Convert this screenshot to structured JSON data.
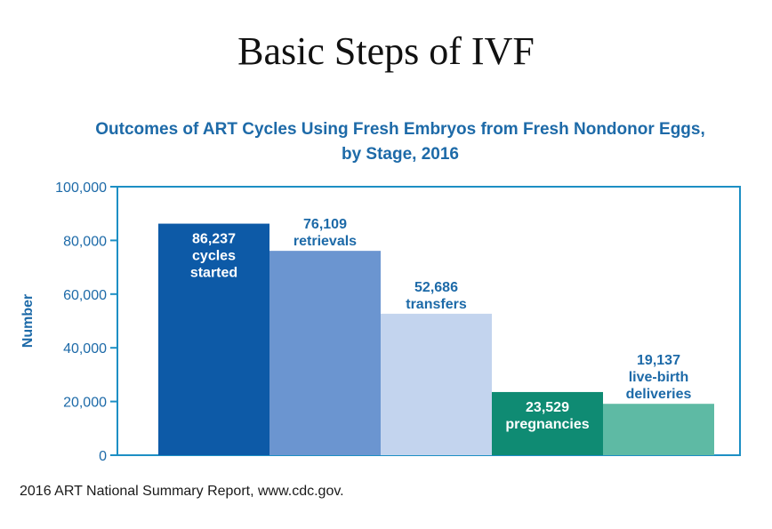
{
  "slide": {
    "title": "Basic Steps of IVF",
    "source": "2016 ART National Summary Report, www.cdc.gov."
  },
  "chart_data": {
    "type": "bar",
    "title": "Outcomes of ART Cycles Using Fresh Embryos from Fresh Nondonor Eggs,",
    "subtitle": "by Stage, 2016",
    "ylabel": "Number",
    "xlabel": "",
    "ylim": [
      0,
      100000
    ],
    "yticks": [
      0,
      20000,
      40000,
      60000,
      80000,
      100000
    ],
    "ytick_labels": [
      "0",
      "20,000",
      "40,000",
      "60,000",
      "80,000",
      "100,000"
    ],
    "grid": false,
    "categories": [
      "cycles started",
      "retrievals",
      "transfers",
      "pregnancies",
      "live-birth deliveries"
    ],
    "values": [
      86237,
      76109,
      52686,
      23529,
      19137
    ],
    "bars": [
      {
        "value_label": "86,237",
        "label_lines": [
          "cycles",
          "started"
        ],
        "color": "#0d5aa7",
        "label_color": "#ffffff",
        "label_position": "inside"
      },
      {
        "value_label": "76,109",
        "label_lines": [
          "retrievals"
        ],
        "color": "#6b95d0",
        "label_color": "#1d6aa8",
        "label_position": "above"
      },
      {
        "value_label": "52,686",
        "label_lines": [
          "transfers"
        ],
        "color": "#c3d4ee",
        "label_color": "#1d6aa8",
        "label_position": "above"
      },
      {
        "value_label": "23,529",
        "label_lines": [
          "pregnancies"
        ],
        "color": "#0f8b73",
        "label_color": "#ffffff",
        "label_position": "inside"
      },
      {
        "value_label": "19,137",
        "label_lines": [
          "live-birth",
          "deliveries"
        ],
        "color": "#5ebaa4",
        "label_color": "#1d6aa8",
        "label_position": "above"
      }
    ],
    "colors": {
      "axis": "#1d8fc4",
      "text": "#1d6aa8"
    }
  }
}
